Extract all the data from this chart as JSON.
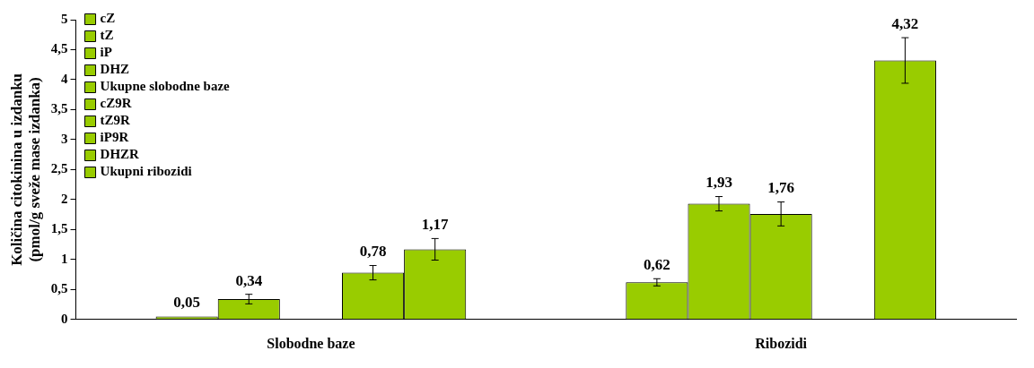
{
  "chart_data": {
    "type": "bar",
    "ylabel": "Količina citokinina u izdanku\n(pmol/g sveže mase izdanka)",
    "categories": [
      "Slobodne baze",
      "Ribozidi"
    ],
    "ylim": [
      0,
      5
    ],
    "yticks": [
      0,
      {
        "value": 0.5,
        "label": "0,5"
      },
      1,
      {
        "value": 1.5,
        "label": "1,5"
      },
      2,
      {
        "value": 2.5,
        "label": "2,5"
      },
      3,
      {
        "value": 3.5,
        "label": "3,5"
      },
      4,
      {
        "value": 4.5,
        "label": "4,5"
      },
      5
    ],
    "grid": false,
    "legend": "top left",
    "series": [
      {
        "name": "cZ",
        "color": "#99cc00",
        "values": [
          0.05,
          null
        ],
        "value_labels": [
          "0,05",
          null
        ]
      },
      {
        "name": "tZ",
        "color": "#99cc00",
        "values": [
          0.34,
          null
        ],
        "errors": [
          0.08,
          null
        ],
        "value_labels": [
          "0,34",
          null
        ]
      },
      {
        "name": "iP",
        "color": "#99cc00",
        "values": [
          null,
          null
        ]
      },
      {
        "name": "DHZ",
        "color": "#99cc00",
        "values": [
          0.78,
          null
        ],
        "errors": [
          0.12,
          null
        ],
        "value_labels": [
          "0,78",
          null
        ]
      },
      {
        "name": "Ukupne slobodne baze",
        "color": "#99cc00",
        "values": [
          1.17,
          null
        ],
        "errors": [
          0.18,
          null
        ],
        "value_labels": [
          "1,17",
          null
        ]
      },
      {
        "name": "cZ9R",
        "color": "#99cc00",
        "values": [
          null,
          0.62
        ],
        "errors": [
          null,
          0.06
        ],
        "value_labels": [
          null,
          "0,62"
        ]
      },
      {
        "name": "tZ9R",
        "color": "#99cc00",
        "values": [
          null,
          1.93
        ],
        "errors": [
          null,
          0.12
        ],
        "value_labels": [
          null,
          "1,93"
        ]
      },
      {
        "name": "iP9R",
        "color": "#99cc00",
        "values": [
          null,
          1.76
        ],
        "errors": [
          null,
          0.2
        ],
        "value_labels": [
          null,
          "1,76"
        ]
      },
      {
        "name": "DHZR",
        "color": "#99cc00",
        "values": [
          null,
          null
        ]
      },
      {
        "name": "Ukupni ribozidi",
        "color": "#99cc00",
        "values": [
          null,
          4.32
        ],
        "errors": [
          null,
          0.38
        ],
        "value_labels": [
          null,
          "4,32"
        ]
      }
    ]
  }
}
